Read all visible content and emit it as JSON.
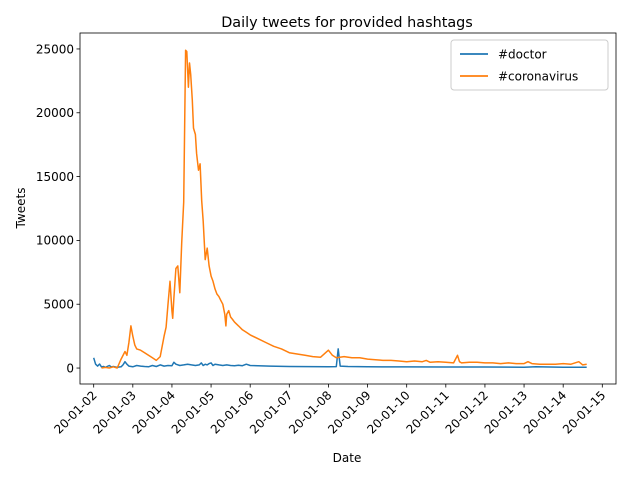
{
  "chart_data": {
    "type": "line",
    "title": "Daily tweets for provided hashtags",
    "xlabel": "Date",
    "ylabel": "Tweets",
    "x_ticks": [
      "20-01-02",
      "20-01-03",
      "20-01-04",
      "20-01-05",
      "20-01-06",
      "20-01-07",
      "20-01-08",
      "20-01-09",
      "20-01-10",
      "20-01-11",
      "20-01-12",
      "20-01-13",
      "20-01-14",
      "20-01-15"
    ],
    "xlim": [
      1.65,
      15.35
    ],
    "ylim": [
      -1250,
      26250
    ],
    "y_ticks": [
      0,
      5000,
      10000,
      15000,
      20000,
      25000
    ],
    "legend_position": "top-right",
    "grid": false,
    "series": [
      {
        "name": "#doctor",
        "color": "#1f77b4",
        "points": [
          [
            2.0,
            800
          ],
          [
            2.05,
            300
          ],
          [
            2.1,
            150
          ],
          [
            2.15,
            320
          ],
          [
            2.2,
            80
          ],
          [
            2.25,
            120
          ],
          [
            2.3,
            60
          ],
          [
            2.4,
            200
          ],
          [
            2.45,
            80
          ],
          [
            2.5,
            120
          ],
          [
            2.6,
            60
          ],
          [
            2.7,
            100
          ],
          [
            2.75,
            250
          ],
          [
            2.8,
            500
          ],
          [
            2.85,
            300
          ],
          [
            2.9,
            150
          ],
          [
            3.0,
            100
          ],
          [
            3.1,
            200
          ],
          [
            3.2,
            150
          ],
          [
            3.3,
            120
          ],
          [
            3.4,
            100
          ],
          [
            3.5,
            200
          ],
          [
            3.6,
            120
          ],
          [
            3.7,
            250
          ],
          [
            3.8,
            150
          ],
          [
            3.9,
            200
          ],
          [
            4.0,
            180
          ],
          [
            4.05,
            450
          ],
          [
            4.1,
            300
          ],
          [
            4.2,
            200
          ],
          [
            4.3,
            250
          ],
          [
            4.4,
            300
          ],
          [
            4.5,
            250
          ],
          [
            4.6,
            200
          ],
          [
            4.7,
            250
          ],
          [
            4.75,
            400
          ],
          [
            4.8,
            200
          ],
          [
            4.85,
            300
          ],
          [
            4.9,
            250
          ],
          [
            4.95,
            350
          ],
          [
            5.0,
            400
          ],
          [
            5.05,
            200
          ],
          [
            5.1,
            300
          ],
          [
            5.2,
            250
          ],
          [
            5.3,
            200
          ],
          [
            5.4,
            250
          ],
          [
            5.5,
            200
          ],
          [
            5.6,
            180
          ],
          [
            5.7,
            220
          ],
          [
            5.8,
            180
          ],
          [
            5.9,
            300
          ],
          [
            6.0,
            200
          ],
          [
            6.5,
            150
          ],
          [
            7.0,
            120
          ],
          [
            7.5,
            110
          ],
          [
            8.0,
            100
          ],
          [
            8.2,
            110
          ],
          [
            8.25,
            1500
          ],
          [
            8.3,
            150
          ],
          [
            8.5,
            120
          ],
          [
            9.0,
            100
          ],
          [
            10.0,
            90
          ],
          [
            11.0,
            80
          ],
          [
            12.0,
            80
          ],
          [
            13.0,
            70
          ],
          [
            13.3,
            100
          ],
          [
            14.0,
            70
          ],
          [
            14.6,
            70
          ]
        ]
      },
      {
        "name": "#coronavirus",
        "color": "#ff7f0e",
        "points": [
          [
            2.2,
            0
          ],
          [
            2.3,
            50
          ],
          [
            2.4,
            0
          ],
          [
            2.5,
            100
          ],
          [
            2.6,
            0
          ],
          [
            2.7,
            700
          ],
          [
            2.8,
            1300
          ],
          [
            2.85,
            1000
          ],
          [
            2.9,
            2000
          ],
          [
            2.95,
            3300
          ],
          [
            3.0,
            2500
          ],
          [
            3.05,
            1800
          ],
          [
            3.1,
            1500
          ],
          [
            3.2,
            1400
          ],
          [
            3.3,
            1200
          ],
          [
            3.4,
            1000
          ],
          [
            3.5,
            800
          ],
          [
            3.6,
            600
          ],
          [
            3.7,
            900
          ],
          [
            3.8,
            2500
          ],
          [
            3.85,
            3200
          ],
          [
            3.9,
            5000
          ],
          [
            3.95,
            6800
          ],
          [
            4.0,
            4500
          ],
          [
            4.02,
            3900
          ],
          [
            4.05,
            5500
          ],
          [
            4.1,
            7800
          ],
          [
            4.15,
            8000
          ],
          [
            4.2,
            5900
          ],
          [
            4.25,
            9800
          ],
          [
            4.3,
            13000
          ],
          [
            4.32,
            18000
          ],
          [
            4.35,
            24900
          ],
          [
            4.38,
            24800
          ],
          [
            4.42,
            22000
          ],
          [
            4.45,
            23900
          ],
          [
            4.48,
            23000
          ],
          [
            4.52,
            21000
          ],
          [
            4.55,
            18800
          ],
          [
            4.6,
            18300
          ],
          [
            4.63,
            16800
          ],
          [
            4.68,
            15500
          ],
          [
            4.72,
            16000
          ],
          [
            4.76,
            13100
          ],
          [
            4.8,
            11500
          ],
          [
            4.85,
            8500
          ],
          [
            4.9,
            9400
          ],
          [
            4.95,
            8000
          ],
          [
            5.0,
            7200
          ],
          [
            5.05,
            6800
          ],
          [
            5.1,
            6200
          ],
          [
            5.15,
            5800
          ],
          [
            5.2,
            5600
          ],
          [
            5.25,
            5300
          ],
          [
            5.3,
            5000
          ],
          [
            5.35,
            4200
          ],
          [
            5.38,
            3300
          ],
          [
            5.4,
            4200
          ],
          [
            5.45,
            4500
          ],
          [
            5.5,
            4000
          ],
          [
            5.55,
            3800
          ],
          [
            5.6,
            3600
          ],
          [
            5.7,
            3300
          ],
          [
            5.8,
            3000
          ],
          [
            5.9,
            2800
          ],
          [
            6.0,
            2600
          ],
          [
            6.2,
            2300
          ],
          [
            6.4,
            2000
          ],
          [
            6.6,
            1700
          ],
          [
            6.8,
            1500
          ],
          [
            7.0,
            1200
          ],
          [
            7.2,
            1100
          ],
          [
            7.4,
            1000
          ],
          [
            7.6,
            900
          ],
          [
            7.8,
            850
          ],
          [
            8.0,
            1400
          ],
          [
            8.1,
            1000
          ],
          [
            8.2,
            800
          ],
          [
            8.4,
            900
          ],
          [
            8.6,
            800
          ],
          [
            8.8,
            800
          ],
          [
            9.0,
            700
          ],
          [
            9.2,
            650
          ],
          [
            9.4,
            600
          ],
          [
            9.6,
            600
          ],
          [
            9.8,
            550
          ],
          [
            10.0,
            500
          ],
          [
            10.2,
            550
          ],
          [
            10.4,
            500
          ],
          [
            10.5,
            600
          ],
          [
            10.6,
            450
          ],
          [
            10.8,
            500
          ],
          [
            11.0,
            450
          ],
          [
            11.2,
            400
          ],
          [
            11.3,
            1000
          ],
          [
            11.35,
            500
          ],
          [
            11.4,
            400
          ],
          [
            11.6,
            450
          ],
          [
            11.8,
            450
          ],
          [
            12.0,
            400
          ],
          [
            12.2,
            400
          ],
          [
            12.4,
            350
          ],
          [
            12.6,
            400
          ],
          [
            12.8,
            350
          ],
          [
            13.0,
            350
          ],
          [
            13.1,
            500
          ],
          [
            13.2,
            350
          ],
          [
            13.4,
            300
          ],
          [
            13.6,
            300
          ],
          [
            13.8,
            300
          ],
          [
            14.0,
            350
          ],
          [
            14.2,
            300
          ],
          [
            14.4,
            500
          ],
          [
            14.5,
            250
          ],
          [
            14.6,
            300
          ]
        ]
      }
    ]
  }
}
